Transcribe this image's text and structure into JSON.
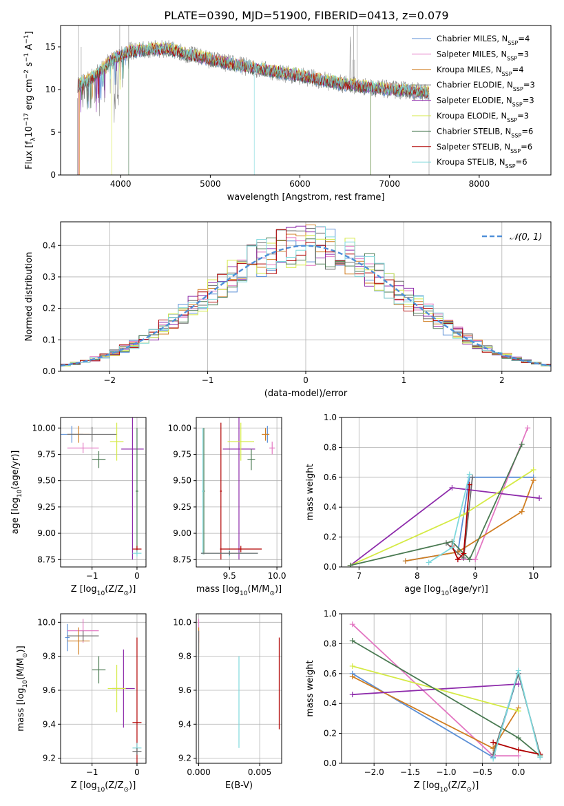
{
  "title": "PLATE=0390, MJD=51900, FIBERID=0413, z=0.079",
  "colors": {
    "chab_miles": "#5b8fd6",
    "salp_miles": "#e377c2",
    "krou_miles": "#d07d20",
    "chab_elodie": "#6b6b6b",
    "salp_elodie": "#8e2cab",
    "krou_elodie": "#d5ea45",
    "chab_stelib": "#4a7a52",
    "salp_stelib": "#b00000",
    "krou_stelib": "#7ed8dc",
    "spectrum": "#888888",
    "gauss": "#4f8fd8"
  },
  "legend": [
    {
      "name": "Chabrier MILES, N",
      "sub": "SSP",
      "tail": "=4",
      "color": "#5b8fd6"
    },
    {
      "name": "Salpeter MILES, N",
      "sub": "SSP",
      "tail": "=3",
      "color": "#e377c2"
    },
    {
      "name": "Kroupa MILES, N",
      "sub": "SSP",
      "tail": "=4",
      "color": "#d07d20"
    },
    {
      "name": "Chabrier ELODIE, N",
      "sub": "SSP",
      "tail": "=3",
      "color": "#6b6b6b"
    },
    {
      "name": "Salpeter ELODIE, N",
      "sub": "SSP",
      "tail": "=3",
      "color": "#8e2cab"
    },
    {
      "name": "Kroupa ELODIE, N",
      "sub": "SSP",
      "tail": "=3",
      "color": "#d5ea45"
    },
    {
      "name": "Chabrier STELIB, N",
      "sub": "SSP",
      "tail": "=6",
      "color": "#4a7a52"
    },
    {
      "name": "Salpeter STELIB, N",
      "sub": "SSP",
      "tail": "=6",
      "color": "#b00000"
    },
    {
      "name": "Kroupa STELIB, N",
      "sub": "SSP",
      "tail": "=6",
      "color": "#7ed8dc"
    }
  ],
  "chart_data": [
    {
      "id": "spectrum",
      "type": "line",
      "xlabel": "wavelength [Angstrom, rest frame]",
      "ylabel": "Flux [f",
      "ylabel_sub": "λ",
      "ylabel_tail": "10",
      "ylabel_sup1": "−17",
      "ylabel_tail2": " erg cm",
      "ylabel_sup2": "−2",
      "ylabel_tail3": " s",
      "ylabel_sup3": "−1",
      "ylabel_tail4": " A",
      "ylabel_sup4": "−1",
      "ylabel_close": "]",
      "xlim": [
        3330,
        8800
      ],
      "ylim": [
        0,
        17.5
      ],
      "xticks": [
        4000,
        5000,
        6000,
        7000,
        8000
      ],
      "yticks": [
        0,
        5,
        10,
        15
      ],
      "continuum": [
        [
          3520,
          10.5
        ],
        [
          3700,
          11.5
        ],
        [
          3900,
          13.5
        ],
        [
          4100,
          14.5
        ],
        [
          4500,
          14.8
        ],
        [
          5000,
          13.5
        ],
        [
          5500,
          12.5
        ],
        [
          6000,
          11.6
        ],
        [
          6500,
          10.6
        ],
        [
          7000,
          10.0
        ],
        [
          7200,
          9.9
        ],
        [
          7440,
          9.6
        ]
      ],
      "model_end": 7440,
      "spectrum_end": 7440
    },
    {
      "id": "residuals",
      "type": "histogram",
      "xlabel": "(data-model)/error",
      "ylabel": "Normed distribution",
      "xlim": [
        -2.5,
        2.5
      ],
      "ylim": [
        0,
        0.475
      ],
      "xticks": [
        -2,
        -1,
        0,
        1,
        2
      ],
      "yticks": [
        0.0,
        0.1,
        0.2,
        0.3,
        0.4
      ],
      "gauss_label": "𝒩(0, 1)",
      "bin_width": 0.1
    },
    {
      "id": "age_vs_Z",
      "type": "errorbar",
      "xlabel": "Z [log",
      "xlabel_sub": "10",
      "xlabel_tail": "(Z/Z",
      "xlabel_sub2": "⊙",
      "xlabel_close": ")]",
      "ylabel": "age  [log",
      "ylabel_sub": "10",
      "ylabel_tail": "(age/yr)]",
      "xlim": [
        -1.7,
        0.2
      ],
      "ylim": [
        8.68,
        10.1
      ],
      "xticks": [
        -1,
        0
      ],
      "yticks": [
        8.75,
        9.0,
        9.25,
        9.5,
        9.75,
        10.0
      ],
      "points": [
        {
          "s": "chab_miles",
          "x": -1.45,
          "y": 9.94,
          "xe": 0.25,
          "ye": 0.08
        },
        {
          "s": "salp_miles",
          "x": -1.2,
          "y": 9.81,
          "xe": 0.35,
          "ye": 0.05
        },
        {
          "s": "krou_miles",
          "x": -1.3,
          "y": 9.94,
          "xe": 0.25,
          "ye": 0.08
        },
        {
          "s": "chab_elodie",
          "x": -1.0,
          "y": 9.94,
          "xe": 0.55,
          "ye": 0.07
        },
        {
          "s": "salp_elodie",
          "x": -0.1,
          "y": 9.8,
          "xe": 0.25,
          "ye": 1.05
        },
        {
          "s": "krou_elodie",
          "x": -0.45,
          "y": 9.87,
          "xe": 0.15,
          "ye": 0.18
        },
        {
          "s": "chab_stelib",
          "x": -0.85,
          "y": 9.7,
          "xe": 0.15,
          "ye": 0.08
        },
        {
          "s": "chab_stelib",
          "x": 0.0,
          "y": 9.4,
          "xe": 0.03,
          "ye": 0.6
        },
        {
          "s": "salp_stelib",
          "x": 0.0,
          "y": 8.85,
          "xe": 0.1,
          "ye": 0.03
        },
        {
          "s": "krou_stelib",
          "x": 0.0,
          "y": 8.81,
          "xe": 0.1,
          "ye": 0.03
        }
      ]
    },
    {
      "id": "age_vs_mass",
      "type": "errorbar",
      "xlabel": "mass [log",
      "xlabel_sub": "10",
      "xlabel_tail": "(M/M",
      "xlabel_sub2": "⊙",
      "xlabel_close": ")]",
      "xlim": [
        9.15,
        10.05
      ],
      "ylim": [
        8.68,
        10.1
      ],
      "xticks": [
        9.5,
        10.0
      ],
      "yticks": [
        8.75,
        9.0,
        9.25,
        9.5,
        9.75,
        10.0
      ],
      "points": [
        {
          "s": "chab_miles",
          "x": 9.9,
          "y": 9.94,
          "xe": 0.02,
          "ye": 0.08
        },
        {
          "s": "salp_miles",
          "x": 9.95,
          "y": 9.81,
          "xe": 0.03,
          "ye": 0.06
        },
        {
          "s": "krou_miles",
          "x": 9.88,
          "y": 9.94,
          "xe": 0.04,
          "ye": 0.06
        },
        {
          "s": "salp_elodie",
          "x": 9.6,
          "y": 9.8,
          "xe": 0.17,
          "ye": 1.05
        },
        {
          "s": "krou_elodie",
          "x": 9.62,
          "y": 9.87,
          "xe": 0.14,
          "ye": 0.18
        },
        {
          "s": "chab_stelib",
          "x": 9.73,
          "y": 9.7,
          "xe": 0.04,
          "ye": 0.1
        },
        {
          "s": "chab_stelib",
          "x": 9.23,
          "y": 9.4,
          "xe": 0.01,
          "ye": 0.6
        },
        {
          "s": "salp_stelib",
          "x": 9.62,
          "y": 8.85,
          "xe": 0.22,
          "ye": 0.03
        },
        {
          "s": "salp_stelib",
          "x": 9.41,
          "y": 9.4,
          "xe": 0.01,
          "ye": 0.65
        },
        {
          "s": "krou_stelib",
          "x": 9.5,
          "y": 8.81,
          "xe": 0.3,
          "ye": 0.03
        },
        {
          "s": "krou_stelib",
          "x": 9.22,
          "y": 9.4,
          "xe": 0.01,
          "ye": 0.6
        },
        {
          "s": "chab_elodie",
          "x": 9.5,
          "y": 8.81,
          "xe": 0.3,
          "ye": 0.02
        }
      ]
    },
    {
      "id": "mass_vs_Z",
      "type": "errorbar",
      "xlabel": "Z [log",
      "xlabel_sub": "10",
      "xlabel_tail": "(Z/Z",
      "xlabel_sub2": "⊙",
      "xlabel_close": ")]",
      "ylabel": "mass [log",
      "ylabel_sub": "10",
      "ylabel_tail": "(M/M",
      "ylabel_sub2": "⊙",
      "ylabel_close": ")]",
      "xlim": [
        -1.7,
        0.2
      ],
      "ylim": [
        9.17,
        10.05
      ],
      "xticks": [
        -1,
        0
      ],
      "yticks": [
        9.2,
        9.4,
        9.6,
        9.8,
        10.0
      ],
      "points": [
        {
          "s": "chab_miles",
          "x": -1.55,
          "y": 9.91,
          "xe": 0.05,
          "ye": 0.08
        },
        {
          "s": "salp_miles",
          "x": -1.2,
          "y": 9.95,
          "xe": 0.35,
          "ye": 0.07
        },
        {
          "s": "krou_miles",
          "x": -1.3,
          "y": 9.89,
          "xe": 0.25,
          "ye": 0.08
        },
        {
          "s": "chab_elodie",
          "x": -1.2,
          "y": 9.92,
          "xe": 0.35,
          "ye": 0.03
        },
        {
          "s": "salp_elodie",
          "x": -0.3,
          "y": 9.61,
          "xe": 0.25,
          "ye": 0.23
        },
        {
          "s": "krou_elodie",
          "x": -0.45,
          "y": 9.61,
          "xe": 0.2,
          "ye": 0.14
        },
        {
          "s": "chab_stelib",
          "x": -0.85,
          "y": 9.72,
          "xe": 0.15,
          "ye": 0.08
        },
        {
          "s": "salp_stelib",
          "x": 0.0,
          "y": 9.41,
          "xe": 0.1,
          "ye": 0.5
        },
        {
          "s": "krou_stelib",
          "x": 0.0,
          "y": 9.26,
          "xe": 0.1,
          "ye": 0.03
        },
        {
          "s": "chab_elodie",
          "x": 0.0,
          "y": 9.24,
          "xe": 0.1,
          "ye": 0.02
        }
      ]
    },
    {
      "id": "mass_vs_EBV",
      "type": "errorbar",
      "xlabel": "E(B-V)",
      "xlim": [
        -0.0002,
        0.0068
      ],
      "ylim": [
        9.17,
        10.05
      ],
      "xticks": [
        0.0,
        0.005
      ],
      "xtick_labels": [
        "0.000",
        "0.005"
      ],
      "yticks": [
        9.2,
        9.4,
        9.6,
        9.8,
        10.0
      ],
      "points": [
        {
          "s": "salp_miles",
          "x": 0.0,
          "y": 9.95,
          "xe": 0.0,
          "ye": 0.07
        },
        {
          "s": "krou_miles",
          "x": 0.0,
          "y": 9.89,
          "xe": 0.0,
          "ye": 0.08
        },
        {
          "s": "chab_elodie",
          "x": 0.0,
          "y": 9.55,
          "xe": 0.0,
          "ye": 0.4
        },
        {
          "s": "krou_stelib",
          "x": 0.0033,
          "y": 9.53,
          "xe": 0.0,
          "ye": 0.27
        },
        {
          "s": "salp_stelib",
          "x": 0.0066,
          "y": 9.64,
          "xe": 0.0,
          "ye": 0.27
        }
      ]
    },
    {
      "id": "weight_vs_age",
      "type": "line",
      "xlabel": "age  [log",
      "xlabel_sub": "10",
      "xlabel_tail": "(age/yr)]",
      "ylabel": "mass weight",
      "xlim": [
        6.7,
        10.3
      ],
      "ylim": [
        0,
        1.0
      ],
      "xticks": [
        7,
        8,
        9,
        10
      ],
      "yticks": [
        0.0,
        0.2,
        0.4,
        0.6,
        0.8,
        1.0
      ],
      "series": [
        {
          "s": "chab_miles",
          "x": [
            7.8,
            8.7,
            8.9,
            10.0
          ],
          "y": [
            0.04,
            0.1,
            0.6,
            0.6
          ]
        },
        {
          "s": "salp_miles",
          "x": [
            8.7,
            9.0,
            9.9
          ],
          "y": [
            0.05,
            0.05,
            0.93
          ]
        },
        {
          "s": "krou_miles",
          "x": [
            7.8,
            8.7,
            9.8,
            10.0
          ],
          "y": [
            0.04,
            0.1,
            0.37,
            0.58
          ]
        },
        {
          "s": "chab_elodie",
          "x": [
            8.5,
            8.8,
            8.95
          ],
          "y": [
            0.16,
            0.06,
            0.6
          ]
        },
        {
          "s": "salp_elodie",
          "x": [
            6.85,
            8.6,
            10.1
          ],
          "y": [
            0.01,
            0.53,
            0.46
          ]
        },
        {
          "s": "krou_elodie",
          "x": [
            6.85,
            8.8,
            10.0
          ],
          "y": [
            0.01,
            0.35,
            0.65
          ]
        },
        {
          "s": "chab_stelib",
          "x": [
            6.85,
            8.6,
            8.9,
            9.8
          ],
          "y": [
            0.01,
            0.17,
            0.05,
            0.82
          ]
        },
        {
          "s": "salp_stelib",
          "x": [
            8.6,
            8.7,
            8.8,
            8.9
          ],
          "y": [
            0.14,
            0.05,
            0.09,
            0.55
          ]
        },
        {
          "s": "krou_stelib",
          "x": [
            8.2,
            8.6,
            8.9
          ],
          "y": [
            0.03,
            0.13,
            0.62
          ]
        }
      ]
    },
    {
      "id": "weight_vs_Z",
      "type": "line",
      "xlabel": "Z [log",
      "xlabel_sub": "10",
      "xlabel_tail": "(Z/Z",
      "xlabel_sub2": "⊙",
      "xlabel_close": ")]",
      "ylabel": "mass weight",
      "xlim": [
        -2.45,
        0.45
      ],
      "ylim": [
        0,
        1.0
      ],
      "xticks": [
        -2.0,
        -1.5,
        -1.0,
        -0.5,
        0.0
      ],
      "yticks": [
        0.0,
        0.2,
        0.4,
        0.6,
        0.8,
        1.0
      ],
      "series": [
        {
          "s": "chab_miles",
          "x": [
            -2.3,
            -0.35,
            0.0
          ],
          "y": [
            0.6,
            0.04,
            0.6
          ]
        },
        {
          "s": "salp_miles",
          "x": [
            -2.3,
            -0.35,
            0.0
          ],
          "y": [
            0.93,
            0.05,
            0.05
          ]
        },
        {
          "s": "krou_miles",
          "x": [
            -2.3,
            -0.35,
            0.0
          ],
          "y": [
            0.58,
            0.1,
            0.37
          ]
        },
        {
          "s": "chab_elodie",
          "x": [
            -0.35,
            0.0,
            0.3
          ],
          "y": [
            0.06,
            0.6,
            0.06
          ]
        },
        {
          "s": "salp_elodie",
          "x": [
            -2.3,
            0.0
          ],
          "y": [
            0.46,
            0.53
          ]
        },
        {
          "s": "krou_elodie",
          "x": [
            -2.3,
            0.0
          ],
          "y": [
            0.65,
            0.35
          ]
        },
        {
          "s": "chab_stelib",
          "x": [
            -2.3,
            0.0,
            0.3
          ],
          "y": [
            0.82,
            0.17,
            0.05
          ]
        },
        {
          "s": "salp_stelib",
          "x": [
            -0.35,
            0.0,
            0.3
          ],
          "y": [
            0.14,
            0.09,
            0.06
          ]
        },
        {
          "s": "krou_stelib",
          "x": [
            -0.35,
            0.0,
            0.3
          ],
          "y": [
            0.03,
            0.62,
            0.04
          ]
        }
      ]
    }
  ]
}
